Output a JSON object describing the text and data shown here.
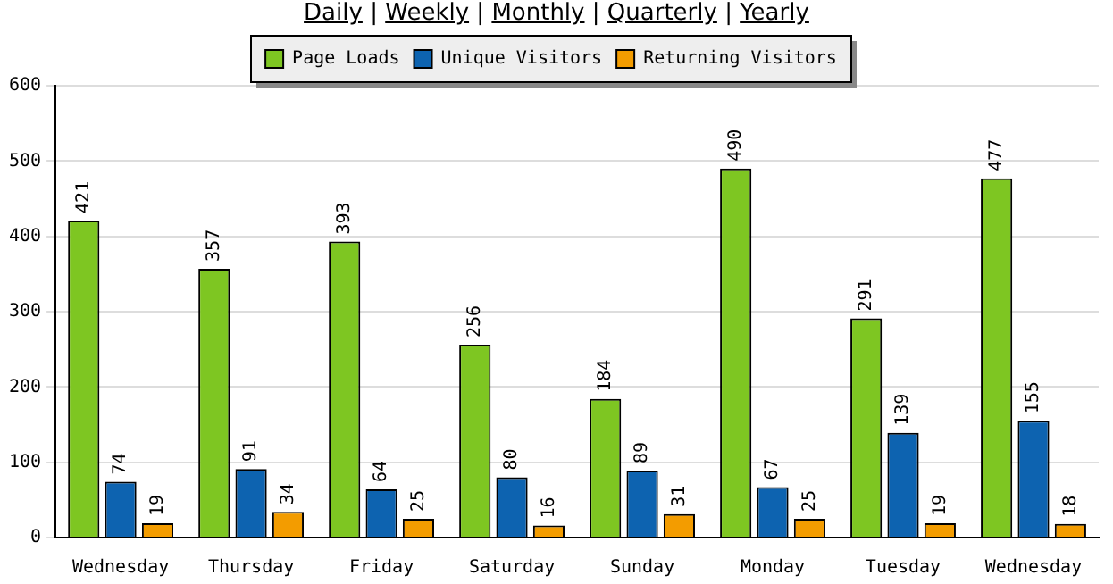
{
  "chart_data": {
    "type": "bar",
    "subtitle": "Daily | Weekly | Monthly | Quarterly | Yearly",
    "categories": [
      "Wednesday",
      "Thursday",
      "Friday",
      "Saturday",
      "Sunday",
      "Monday",
      "Tuesday",
      "Wednesday"
    ],
    "series": [
      {
        "name": "Page Loads",
        "color": "#7ec622",
        "values": [
          421,
          357,
          393,
          256,
          184,
          490,
          291,
          477
        ]
      },
      {
        "name": "Unique Visitors",
        "color": "#0d63b0",
        "values": [
          74,
          91,
          64,
          80,
          89,
          67,
          139,
          155
        ]
      },
      {
        "name": "Returning Visitors",
        "color": "#f39c00",
        "values": [
          19,
          34,
          25,
          16,
          31,
          25,
          19,
          18
        ]
      }
    ],
    "ylim": [
      0,
      600
    ],
    "yticks": [
      0,
      100,
      200,
      300,
      400,
      500,
      600
    ],
    "grid": "y",
    "legend": "top",
    "data_labels": true
  }
}
